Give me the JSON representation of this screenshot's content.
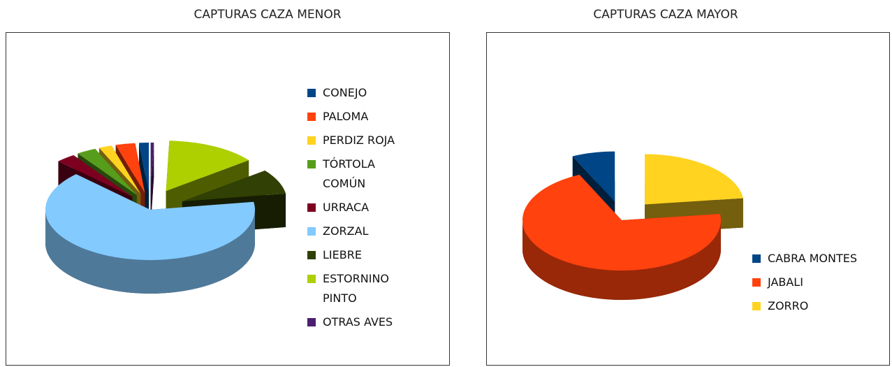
{
  "chart_data": [
    {
      "type": "pie",
      "title": "CAPTURAS CAZA MENOR",
      "categories": [
        "CONEJO",
        "PALOMA",
        "PERDIZ ROJA",
        "TÓRTOLA COMÚN",
        "URRACA",
        "ZORZAL",
        "LIEBRE",
        "ESTORNINO PINTO",
        "OTRAS AVES"
      ],
      "values": [
        1.5,
        3,
        2,
        3,
        3,
        65,
        8,
        14,
        0.5
      ],
      "colors": [
        "#004586",
        "#ff420e",
        "#ffd320",
        "#579d1c",
        "#7e0021",
        "#83caff",
        "#314004",
        "#aecf00",
        "#4b1f6f"
      ],
      "legend": "right"
    },
    {
      "type": "pie",
      "title": "CAPTURAS CAZA MAYOR",
      "categories": [
        "CABRA MONTES",
        "JABALI",
        "ZORRO"
      ],
      "values": [
        7,
        70,
        23
      ],
      "colors": [
        "#004586",
        "#ff420e",
        "#ffd320"
      ],
      "legend": "bottom-right"
    }
  ]
}
